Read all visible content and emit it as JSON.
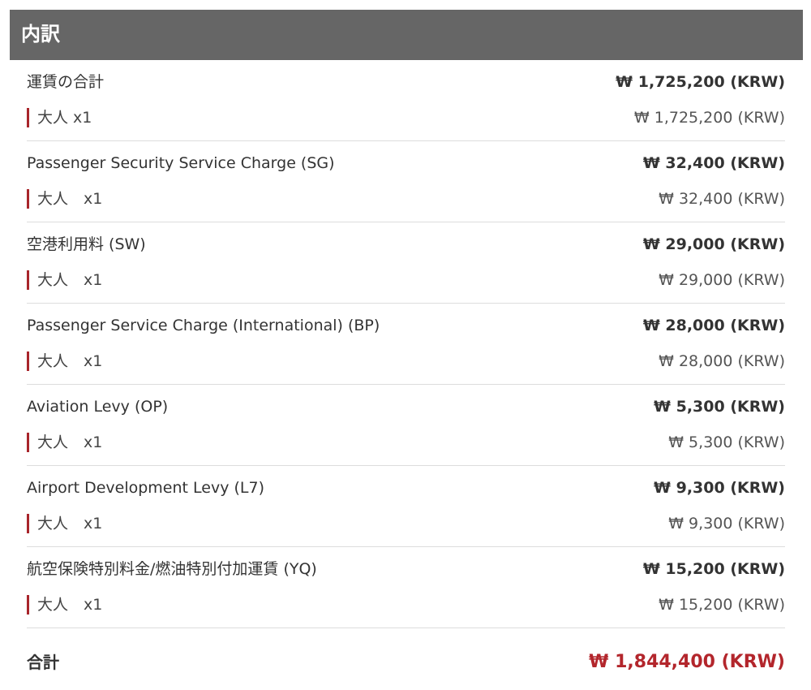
{
  "header": {
    "title": "内訳"
  },
  "items": [
    {
      "label": "運賃の合計",
      "amount": "₩ 1,725,200 (KRW)",
      "sub": {
        "label": "大人 x1",
        "amount": "₩ 1,725,200 (KRW)"
      }
    },
    {
      "label": "Passenger Security Service Charge (SG)",
      "amount": "₩ 32,400 (KRW)",
      "sub": {
        "label": "大人　x1",
        "amount": "₩ 32,400 (KRW)"
      }
    },
    {
      "label": "空港利用料 (SW)",
      "amount": "₩ 29,000 (KRW)",
      "sub": {
        "label": "大人　x1",
        "amount": "₩ 29,000 (KRW)"
      }
    },
    {
      "label": "Passenger Service Charge (International) (BP)",
      "amount": "₩ 28,000 (KRW)",
      "sub": {
        "label": "大人　x1",
        "amount": "₩ 28,000 (KRW)"
      }
    },
    {
      "label": "Aviation Levy (OP)",
      "amount": "₩ 5,300 (KRW)",
      "sub": {
        "label": "大人　x1",
        "amount": "₩ 5,300 (KRW)"
      }
    },
    {
      "label": "Airport Development Levy (L7)",
      "amount": "₩ 9,300 (KRW)",
      "sub": {
        "label": "大人　x1",
        "amount": "₩ 9,300 (KRW)"
      }
    },
    {
      "label": "航空保険特別料金/燃油特別付加運賃 (YQ)",
      "amount": "₩ 15,200 (KRW)",
      "sub": {
        "label": "大人　x1",
        "amount": "₩ 15,200 (KRW)"
      }
    }
  ],
  "total": {
    "label": "合計",
    "amount": "₩ 1,844,400 (KRW)"
  }
}
